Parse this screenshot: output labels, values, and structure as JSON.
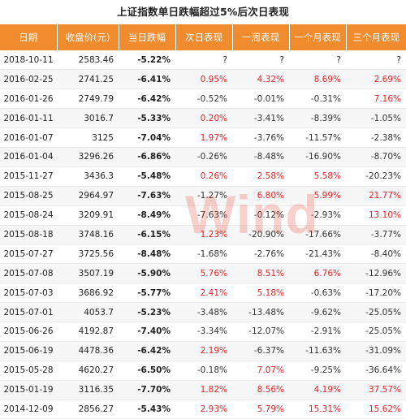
{
  "title": "上证指数单日跌幅超过5%后次日表现",
  "headers": [
    "日期",
    "收盘价(元)",
    "当日跌幅",
    "次日表现",
    "一周表现",
    "一个月表现",
    "三个月表现"
  ],
  "rows": [
    [
      "2018-10-11",
      "2583.46",
      "-5.22%",
      "?",
      "?",
      "?",
      "?"
    ],
    [
      "2016-02-25",
      "2741.25",
      "-6.41%",
      "0.95%",
      "4.32%",
      "8.69%",
      "2.69%"
    ],
    [
      "2016-01-26",
      "2749.79",
      "-6.42%",
      "-0.52%",
      "-0.01%",
      "-0.31%",
      "7.16%"
    ],
    [
      "2016-01-11",
      "3016.7",
      "-5.33%",
      "0.20%",
      "-3.41%",
      "-8.39%",
      "-1.05%"
    ],
    [
      "2016-01-07",
      "3125",
      "-7.04%",
      "1.97%",
      "-3.76%",
      "-11.57%",
      "-2.38%"
    ],
    [
      "2016-01-04",
      "3296.26",
      "-6.86%",
      "-0.26%",
      "-8.48%",
      "-16.90%",
      "-8.70%"
    ],
    [
      "2015-11-27",
      "3436.3",
      "-5.48%",
      "0.26%",
      "2.58%",
      "5.58%",
      "-20.23%"
    ],
    [
      "2015-08-25",
      "2964.97",
      "-7.63%",
      "-1.27%",
      "6.80%",
      "5.99%",
      "21.77%"
    ],
    [
      "2015-08-24",
      "3209.91",
      "-8.49%",
      "-7.63%",
      "-0.12%",
      "-2.93%",
      "13.10%"
    ],
    [
      "2015-08-18",
      "3748.16",
      "-6.15%",
      "1.23%",
      "-20.90%",
      "-17.66%",
      "-3.77%"
    ],
    [
      "2015-07-27",
      "3725.56",
      "-8.48%",
      "-1.68%",
      "-2.76%",
      "-21.43%",
      "-8.40%"
    ],
    [
      "2015-07-08",
      "3507.19",
      "-5.90%",
      "5.76%",
      "8.51%",
      "6.76%",
      "-12.96%"
    ],
    [
      "2015-07-03",
      "3686.92",
      "-5.77%",
      "2.41%",
      "5.18%",
      "-0.63%",
      "-17.20%"
    ],
    [
      "2015-07-01",
      "4053.7",
      "-5.23%",
      "-3.48%",
      "-13.48%",
      "-9.62%",
      "-25.05%"
    ],
    [
      "2015-06-26",
      "4192.87",
      "-7.40%",
      "-3.34%",
      "-12.07%",
      "-2.91%",
      "-25.05%"
    ],
    [
      "2015-06-19",
      "4478.36",
      "-6.42%",
      "2.19%",
      "-6.37%",
      "-11.63%",
      "-31.09%"
    ],
    [
      "2015-05-28",
      "4620.27",
      "-6.50%",
      "-0.18%",
      "7.07%",
      "-9.25%",
      "-36.64%"
    ],
    [
      "2015-01-19",
      "3116.35",
      "-7.70%",
      "1.82%",
      "8.56%",
      "4.19%",
      "37.57%"
    ],
    [
      "2014-12-09",
      "2856.27",
      "-5.43%",
      "2.93%",
      "5.79%",
      "15.31%",
      "15.62%"
    ]
  ],
  "watermark": "Wind",
  "colors": {
    "header_bg": "#f08c2e",
    "header_text": "#ffffff",
    "positive": "#e0262b",
    "negative": "#333333",
    "stripe": "#f7f7f7"
  }
}
